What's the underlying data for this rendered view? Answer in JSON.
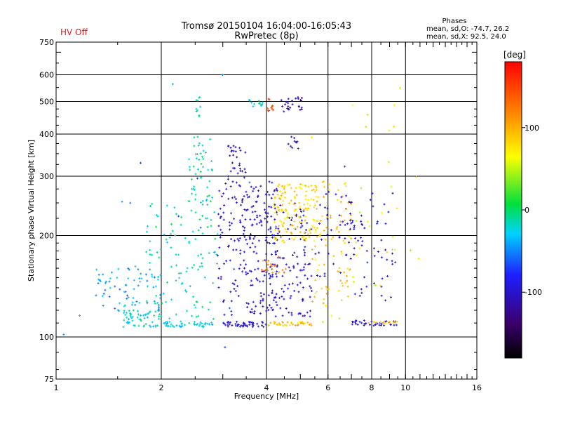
{
  "status_text": "HV Off",
  "status_color": "#e31a1c",
  "chart_data": {
    "type": "scatter",
    "title": "Tromsø 20150104 16:04:00-16:05:43",
    "subtitle": "RwPretec (8p)",
    "xlabel": "Frequency [MHz]",
    "ylabel": "Stationary phase Virtual Height [km]",
    "x_scale": "log2",
    "y_scale": "log",
    "xlim": [
      1,
      16
    ],
    "ylim": [
      75,
      750
    ],
    "x_ticks": [
      1,
      2,
      4,
      6,
      8,
      10,
      16
    ],
    "x_tick_labels": [
      "1",
      "2",
      "4",
      "6",
      "8",
      "10",
      "16"
    ],
    "x_grid": [
      2,
      4,
      6,
      8,
      10
    ],
    "y_ticks": [
      75,
      100,
      200,
      300,
      400,
      500,
      600,
      750
    ],
    "y_tick_labels": [
      "75",
      "100",
      "200",
      "300",
      "400",
      "500",
      "600",
      "750"
    ],
    "y_grid": [
      100,
      200,
      300,
      400,
      500,
      600
    ],
    "grid": true,
    "stats": {
      "title": "Phases",
      "line_o": "mean, sd,O: -74.7, 26.2",
      "line_x": "mean, sd,X:  92.5, 24.0"
    },
    "colorbar": {
      "label": "[deg]",
      "min": -180,
      "max": 180,
      "ticks": [
        100,
        0,
        -100
      ],
      "tick_labels": [
        "100",
        "0",
        "-100"
      ],
      "colormap": "rainbow"
    },
    "clusters": [
      {
        "xmin": 1.5,
        "xmax": 2.0,
        "ymin": 107,
        "ymax": 120,
        "phase": -20,
        "n": 60
      },
      {
        "xmin": 1.3,
        "xmax": 2.0,
        "ymin": 120,
        "ymax": 165,
        "phase": -40,
        "n": 70
      },
      {
        "xmin": 1.8,
        "xmax": 2.9,
        "ymin": 110,
        "ymax": 250,
        "phase": -15,
        "n": 110
      },
      {
        "xmin": 2.4,
        "xmax": 2.8,
        "ymin": 250,
        "ymax": 395,
        "phase": -15,
        "n": 50
      },
      {
        "xmin": 2.5,
        "xmax": 2.6,
        "ymin": 450,
        "ymax": 520,
        "phase": -15,
        "n": 10
      },
      {
        "xmin": 2.0,
        "xmax": 2.9,
        "ymin": 107,
        "ymax": 111,
        "phase": -25,
        "n": 45
      },
      {
        "xmin": 2.9,
        "xmax": 4.3,
        "ymin": 115,
        "ymax": 290,
        "phase": -100,
        "n": 240
      },
      {
        "xmin": 3.1,
        "xmax": 3.5,
        "ymin": 290,
        "ymax": 370,
        "phase": -110,
        "n": 30
      },
      {
        "xmin": 3.0,
        "xmax": 4.0,
        "ymin": 107,
        "ymax": 111,
        "phase": -95,
        "n": 45
      },
      {
        "xmin": 4.0,
        "xmax": 5.4,
        "ymin": 115,
        "ymax": 250,
        "phase": -100,
        "n": 120
      },
      {
        "xmin": 4.2,
        "xmax": 5.6,
        "ymin": 190,
        "ymax": 285,
        "phase": 85,
        "n": 150
      },
      {
        "xmin": 4.0,
        "xmax": 5.4,
        "ymin": 108,
        "ymax": 111,
        "phase": 90,
        "n": 35
      },
      {
        "xmin": 3.8,
        "xmax": 4.6,
        "ymin": 155,
        "ymax": 175,
        "phase": 120,
        "n": 20
      },
      {
        "xmin": 4.4,
        "xmax": 5.1,
        "ymin": 460,
        "ymax": 515,
        "phase": -110,
        "n": 25
      },
      {
        "xmin": 3.5,
        "xmax": 3.9,
        "ymin": 480,
        "ymax": 510,
        "phase": -20,
        "n": 12
      },
      {
        "xmin": 4.0,
        "xmax": 4.2,
        "ymin": 460,
        "ymax": 510,
        "phase": 150,
        "n": 10
      },
      {
        "xmin": 4.6,
        "xmax": 5.0,
        "ymin": 360,
        "ymax": 395,
        "phase": -100,
        "n": 10
      },
      {
        "xmin": 5.4,
        "xmax": 7.0,
        "ymin": 120,
        "ymax": 290,
        "phase": 90,
        "n": 80
      },
      {
        "xmin": 5.5,
        "xmax": 7.2,
        "ymin": 150,
        "ymax": 270,
        "phase": -100,
        "n": 50
      },
      {
        "xmin": 7.0,
        "xmax": 9.5,
        "ymin": 108,
        "ymax": 112,
        "phase": -100,
        "n": 35
      },
      {
        "xmin": 7.8,
        "xmax": 9.5,
        "ymin": 110,
        "ymax": 111,
        "phase": 90,
        "n": 15
      },
      {
        "xmin": 7.0,
        "xmax": 9.4,
        "ymin": 125,
        "ymax": 270,
        "phase": -90,
        "n": 45
      },
      {
        "xmin": 6.5,
        "xmax": 9.5,
        "ymin": 140,
        "ymax": 250,
        "phase": 70,
        "n": 20
      },
      {
        "xmin": 4.5,
        "xmax": 12,
        "ymin": 85,
        "ymax": 600,
        "phase": 60,
        "n": 20
      },
      {
        "xmin": 1.0,
        "xmax": 12,
        "ymin": 80,
        "ymax": 620,
        "phase": -60,
        "n": 15
      }
    ]
  }
}
